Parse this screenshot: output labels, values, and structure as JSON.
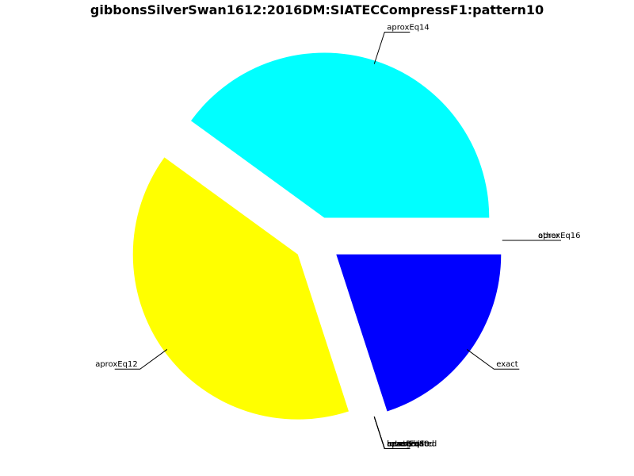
{
  "chart_data": {
    "type": "pie",
    "title": "gibbonsSilverSwan1612:2016DM:SIATECCompressF1:pattern10",
    "start_angle_deg": 0,
    "slices": [
      {
        "label": "aproxEq14",
        "value": 0.4,
        "color": "#00ffff"
      },
      {
        "label": "aproxEq12",
        "value": 0.4,
        "color": "#ffff00"
      },
      {
        "label": "exact",
        "value": 0.2,
        "color": "#0000ff"
      },
      {
        "label": "aproxEq16",
        "value": 0.0,
        "color": "#000000"
      },
      {
        "label": "other",
        "value": 0.0,
        "color": "#000000"
      }
    ],
    "overlapping_labels": [
      "baseRotated",
      "aproxEq",
      "inverted",
      "retrograded",
      "rotated",
      "aproxEq8",
      "aproxEq10"
    ]
  }
}
